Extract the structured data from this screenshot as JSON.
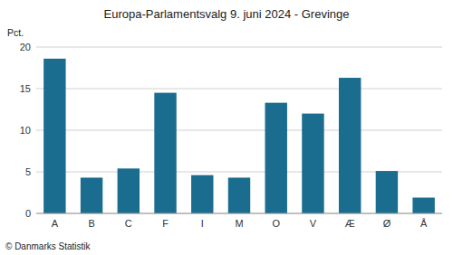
{
  "chart_data": {
    "type": "bar",
    "title": "Europa-Parlamentsvalg 9. juni 2024 - Grevinge",
    "ylabel": "Pct.",
    "footer": "© Danmarks Statistik",
    "categories": [
      "A",
      "B",
      "C",
      "F",
      "I",
      "M",
      "O",
      "V",
      "Æ",
      "Ø",
      "Å"
    ],
    "values": [
      18.6,
      4.3,
      5.4,
      14.5,
      4.6,
      4.3,
      13.3,
      12.0,
      16.3,
      5.1,
      1.9
    ],
    "color": "#1a6d8e",
    "ylim": [
      0,
      20
    ],
    "yticks": [
      0,
      5,
      10,
      15,
      20
    ],
    "grid": true
  }
}
